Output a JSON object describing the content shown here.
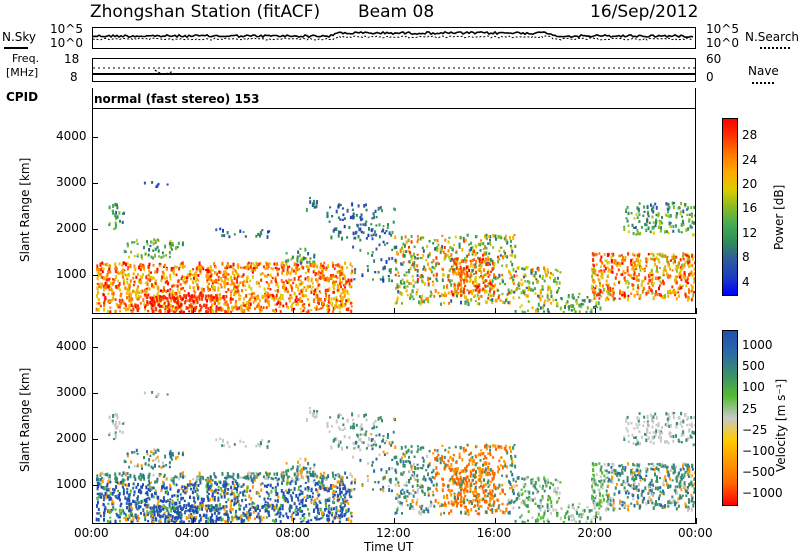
{
  "header": {
    "station": "Zhongshan Station (fitACF)",
    "beam": "Beam 08",
    "date": "16/Sep/2012"
  },
  "noise_panel": {
    "left_label": "N.Sky",
    "right_label": "N.Search",
    "left_ticks": [
      "10^5",
      "10^0"
    ],
    "right_ticks": [
      "10^5",
      "10^0"
    ]
  },
  "freq_panel": {
    "left_label_1": "Freq.",
    "left_label_2": "[MHz]",
    "right_label": "Nave",
    "left_ticks": [
      "18",
      "8"
    ],
    "right_ticks": [
      "60",
      "0"
    ]
  },
  "cpid": {
    "label": "CPID",
    "mode": "normal (fast stereo) 153"
  },
  "chart_data": [
    {
      "type": "heatmap",
      "quantity": "power",
      "ylabel": "Slant Range [km]",
      "xlabel": "Time UT",
      "x_range_hours": [
        0,
        24
      ],
      "ylim": [
        180,
        4600
      ],
      "y_ticks": [
        "1000",
        "2000",
        "3000",
        "4000"
      ],
      "x_ticks": [
        "00:00",
        "04:00",
        "08:00",
        "12:00",
        "16:00",
        "20:00",
        "00:00"
      ],
      "colorbar": {
        "label": "Power [dB]",
        "ticks": [
          "28",
          "24",
          "20",
          "16",
          "12",
          "8",
          "4"
        ],
        "colors": [
          "#ff0000",
          "#ff3300",
          "#ff7700",
          "#ffaa00",
          "#ddcc00",
          "#88bb22",
          "#44aa55",
          "#2e8b57",
          "#2e5aa0",
          "#1a3cbf",
          "#0000ff"
        ]
      }
    },
    {
      "type": "heatmap",
      "quantity": "velocity",
      "ylabel": "Slant Range [km]",
      "xlabel": "Time UT",
      "x_range_hours": [
        0,
        24
      ],
      "ylim": [
        180,
        4600
      ],
      "y_ticks": [
        "1000",
        "2000",
        "3000",
        "4000"
      ],
      "x_ticks": [
        "00:00",
        "04:00",
        "08:00",
        "12:00",
        "16:00",
        "20:00",
        "00:00"
      ],
      "colorbar": {
        "label": "Velocity [m s⁻¹]",
        "ticks": [
          "1000",
          "500",
          "100",
          "25",
          "−25",
          "−100",
          "−500",
          "−1000"
        ],
        "colors": [
          "#1f4fb0",
          "#2a6aa8",
          "#3a8f6a",
          "#55bb33",
          "#c8c8c8",
          "#ffcc00",
          "#ff9900",
          "#ff6600",
          "#ff0000"
        ]
      }
    }
  ],
  "x_axis_label": "Time UT"
}
